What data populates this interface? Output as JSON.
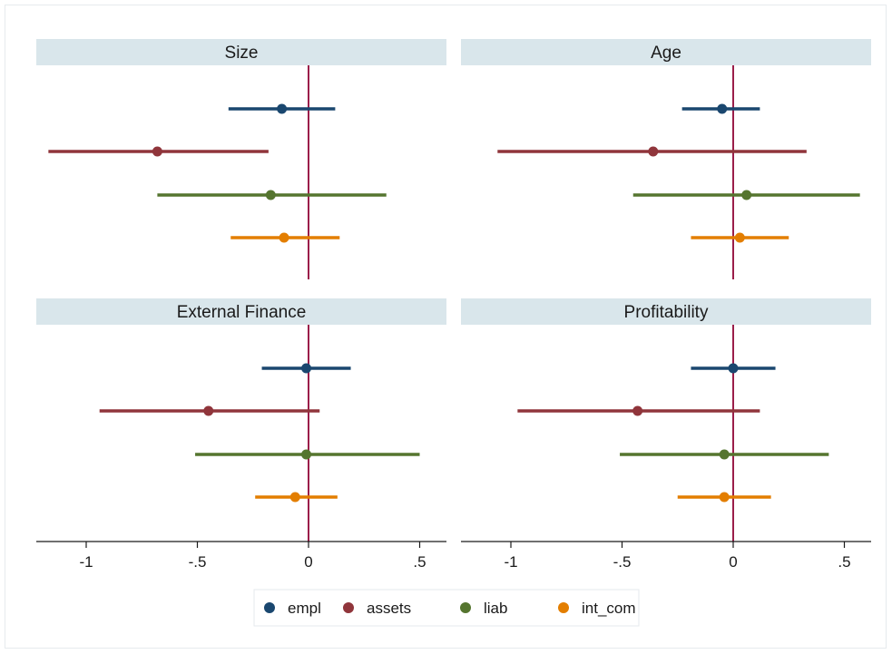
{
  "chart_data": {
    "type": "scatter",
    "subtype": "coefficient-plot",
    "xlim": [
      -1.2,
      0.62
    ],
    "x_ticks": [
      -1,
      -0.5,
      0,
      0.5
    ],
    "x_tick_labels": [
      "-1",
      "-.5",
      "0",
      ".5"
    ],
    "reference_line": 0,
    "grid": false,
    "legend_position": "bottom",
    "series": [
      {
        "name": "empl",
        "color": "#1a476f"
      },
      {
        "name": "assets",
        "color": "#90353b"
      },
      {
        "name": "liab",
        "color": "#55752f"
      },
      {
        "name": "int_com",
        "color": "#e37e00"
      }
    ],
    "panels": [
      {
        "title": "Size",
        "estimates": [
          {
            "series": "empl",
            "point": -0.12,
            "lo": -0.36,
            "hi": 0.12
          },
          {
            "series": "assets",
            "point": -0.68,
            "lo": -1.17,
            "hi": -0.18
          },
          {
            "series": "liab",
            "point": -0.17,
            "lo": -0.68,
            "hi": 0.35
          },
          {
            "series": "int_com",
            "point": -0.11,
            "lo": -0.35,
            "hi": 0.14
          }
        ]
      },
      {
        "title": "Age",
        "estimates": [
          {
            "series": "empl",
            "point": -0.05,
            "lo": -0.23,
            "hi": 0.12
          },
          {
            "series": "assets",
            "point": -0.36,
            "lo": -1.06,
            "hi": 0.33
          },
          {
            "series": "liab",
            "point": 0.06,
            "lo": -0.45,
            "hi": 0.57
          },
          {
            "series": "int_com",
            "point": 0.03,
            "lo": -0.19,
            "hi": 0.25
          }
        ]
      },
      {
        "title": "External Finance",
        "estimates": [
          {
            "series": "empl",
            "point": -0.01,
            "lo": -0.21,
            "hi": 0.19
          },
          {
            "series": "assets",
            "point": -0.45,
            "lo": -0.94,
            "hi": 0.05
          },
          {
            "series": "liab",
            "point": -0.01,
            "lo": -0.51,
            "hi": 0.5
          },
          {
            "series": "int_com",
            "point": -0.06,
            "lo": -0.24,
            "hi": 0.13
          }
        ]
      },
      {
        "title": "Profitability",
        "estimates": [
          {
            "series": "empl",
            "point": 0.0,
            "lo": -0.19,
            "hi": 0.19
          },
          {
            "series": "assets",
            "point": -0.43,
            "lo": -0.97,
            "hi": 0.12
          },
          {
            "series": "liab",
            "point": -0.04,
            "lo": -0.51,
            "hi": 0.43
          },
          {
            "series": "int_com",
            "point": -0.04,
            "lo": -0.25,
            "hi": 0.17
          }
        ]
      }
    ]
  },
  "colors": {
    "title_band": "#d9e6eb",
    "reference_line": "#9b1e4a",
    "axis": "#1a1a1a"
  }
}
